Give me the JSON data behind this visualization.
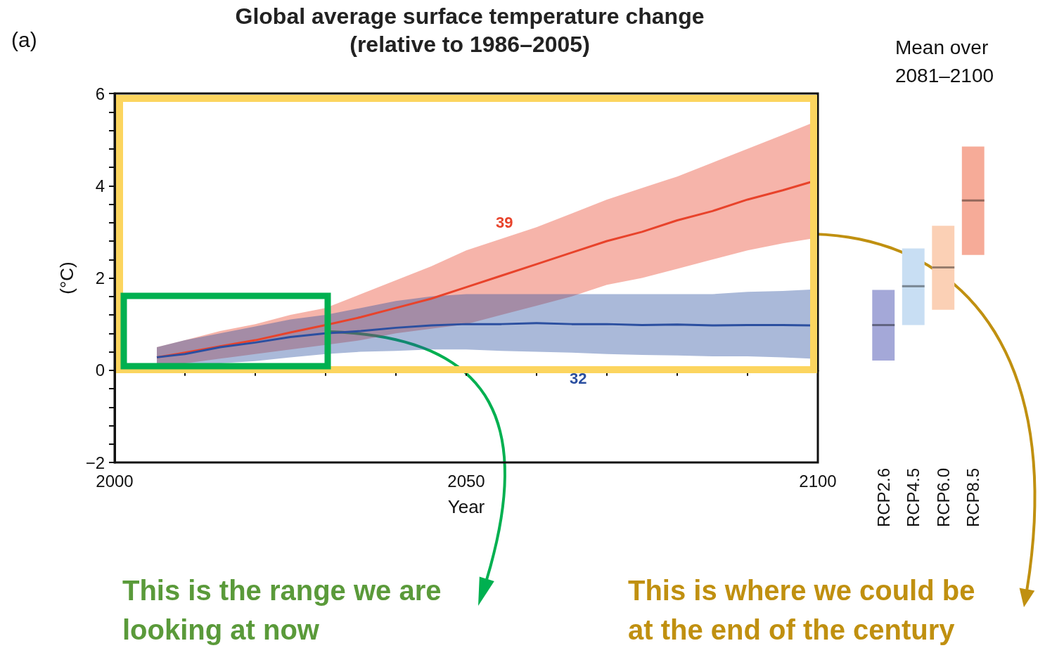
{
  "chart_data": [
    {
      "type": "line",
      "title": "Global average surface temperature change",
      "subtitle": "(relative to 1986–2005)",
      "xlabel": "Year",
      "ylabel": "(°C)",
      "annotations": [
        "(a)",
        "This is the range we are looking at now",
        "This is where we could be at the end of the century",
        "39",
        "32"
      ],
      "xlim": [
        2000,
        2100
      ],
      "xticks": [
        2000,
        {
          "value": 2010,
          "label": null
        },
        {
          "value": 2020,
          "label": null
        },
        {
          "value": 2030,
          "label": null
        },
        {
          "value": 2040,
          "label": null
        },
        2050,
        {
          "value": 2060,
          "label": null
        },
        {
          "value": 2070,
          "label": null
        },
        {
          "value": 2080,
          "label": null
        },
        {
          "value": 2090,
          "label": null
        },
        2100
      ],
      "ylim": [
        -2,
        6
      ],
      "yticks": [
        {
          "value": -2,
          "label": "−2"
        },
        {
          "value": -1.6,
          "label": null
        },
        {
          "value": -1.2,
          "label": null
        },
        {
          "value": -0.8,
          "label": null
        },
        {
          "value": -0.4,
          "label": null
        },
        0,
        {
          "value": 0.4,
          "label": null
        },
        {
          "value": 0.8,
          "label": null
        },
        {
          "value": 1.2,
          "label": null
        },
        {
          "value": 1.6,
          "label": null
        },
        2,
        {
          "value": 2.4,
          "label": null
        },
        {
          "value": 2.8,
          "label": null
        },
        {
          "value": 3.2,
          "label": null
        },
        {
          "value": 3.6,
          "label": null
        },
        4,
        {
          "value": 4.4,
          "label": null
        },
        {
          "value": 4.8,
          "label": null
        },
        {
          "value": 5.2,
          "label": null
        },
        {
          "value": 5.6,
          "label": null
        },
        6
      ],
      "series": [
        {
          "color": "#e8432b",
          "x": [
            2006,
            2010,
            2015,
            2020,
            2025,
            2030,
            2035,
            2040,
            2045,
            2050,
            2055,
            2060,
            2065,
            2070,
            2075,
            2080,
            2085,
            2090,
            2095,
            2099
          ],
          "values": [
            0.28,
            0.38,
            0.52,
            0.65,
            0.82,
            0.98,
            1.15,
            1.35,
            1.55,
            1.8,
            2.05,
            2.3,
            2.55,
            2.8,
            3.0,
            3.25,
            3.45,
            3.7,
            3.9,
            4.08
          ],
          "lower": [
            0.1,
            0.15,
            0.25,
            0.35,
            0.45,
            0.55,
            0.65,
            0.8,
            0.9,
            1.0,
            1.2,
            1.4,
            1.6,
            1.85,
            2.0,
            2.2,
            2.4,
            2.6,
            2.75,
            2.85
          ],
          "upper": [
            0.5,
            0.65,
            0.85,
            1.0,
            1.2,
            1.35,
            1.65,
            1.95,
            2.25,
            2.6,
            2.85,
            3.1,
            3.4,
            3.7,
            3.95,
            4.2,
            4.5,
            4.8,
            5.1,
            5.35
          ]
        },
        {
          "color": "#2b4fa0",
          "x": [
            2006,
            2010,
            2015,
            2020,
            2025,
            2030,
            2035,
            2040,
            2045,
            2050,
            2055,
            2060,
            2065,
            2070,
            2075,
            2080,
            2085,
            2090,
            2095,
            2099
          ],
          "values": [
            0.28,
            0.35,
            0.5,
            0.6,
            0.72,
            0.8,
            0.85,
            0.92,
            0.97,
            1.0,
            1.0,
            1.02,
            1.0,
            1.0,
            0.98,
            0.99,
            0.97,
            0.98,
            0.98,
            0.97
          ],
          "lower": [
            0.1,
            0.12,
            0.15,
            0.2,
            0.28,
            0.35,
            0.4,
            0.42,
            0.45,
            0.45,
            0.42,
            0.4,
            0.38,
            0.35,
            0.33,
            0.32,
            0.3,
            0.3,
            0.28,
            0.25
          ],
          "upper": [
            0.5,
            0.65,
            0.8,
            0.95,
            1.1,
            1.2,
            1.35,
            1.5,
            1.6,
            1.65,
            1.65,
            1.65,
            1.65,
            1.65,
            1.65,
            1.65,
            1.65,
            1.7,
            1.72,
            1.75
          ]
        }
      ]
    },
    {
      "type": "box",
      "title": "Mean over 2081–2100",
      "categories": [
        "RCP2.6",
        "RCP4.5",
        "RCP6.0",
        "RCP8.5"
      ],
      "ylim": [
        -2,
        6
      ],
      "tick_labels": "x",
      "colors": [
        "#a4a8d8",
        "#c8def3",
        "#fbd0b5",
        "#f6ab98"
      ],
      "boxes": [
        {
          "low": 0.21,
          "q1": 0.21,
          "median": 0.98,
          "q3": 1.74,
          "high": 1.74
        },
        {
          "low": 0.98,
          "q1": 0.98,
          "median": 1.82,
          "q3": 2.64,
          "high": 2.64
        },
        {
          "low": 1.31,
          "q1": 1.31,
          "median": 2.23,
          "q3": 3.13,
          "high": 3.13
        },
        {
          "low": 2.5,
          "q1": 2.5,
          "median": 3.68,
          "q3": 4.85,
          "high": 4.85
        }
      ]
    }
  ]
}
